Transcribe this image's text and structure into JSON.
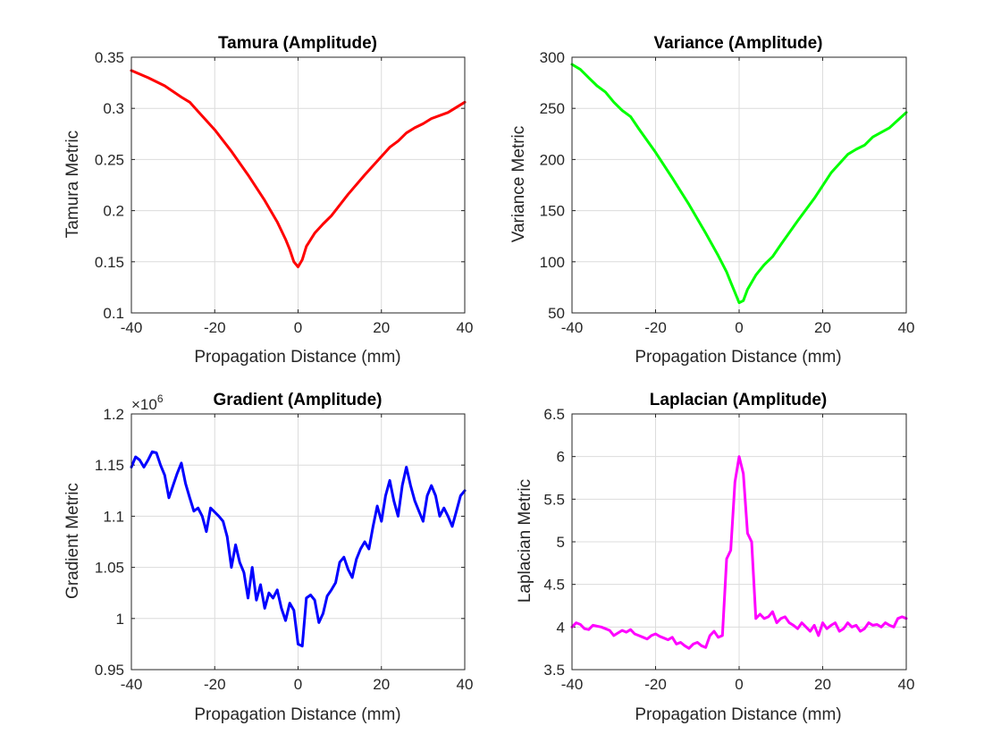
{
  "chart_data": [
    {
      "type": "line",
      "title": "Tamura (Amplitude)",
      "xlabel": "Propagation Distance (mm)",
      "ylabel": "Tamura Metric",
      "xlim": [
        -40,
        40
      ],
      "ylim": [
        0.1,
        0.35
      ],
      "xticks": [
        "-40",
        "-20",
        "0",
        "20",
        "40"
      ],
      "yticks": [
        "0.1",
        "0.15",
        "0.2",
        "0.25",
        "0.3",
        "0.35"
      ],
      "exponent_label": "",
      "grid": true,
      "color": "#ff0000",
      "x": [
        -40,
        -36,
        -32,
        -28,
        -26,
        -24,
        -20,
        -16,
        -12,
        -8,
        -5,
        -3,
        -2,
        -1,
        0,
        1,
        2,
        4,
        6,
        8,
        12,
        16,
        20,
        22,
        24,
        26,
        28,
        30,
        32,
        36,
        40
      ],
      "y": [
        0.337,
        0.33,
        0.322,
        0.311,
        0.306,
        0.297,
        0.279,
        0.258,
        0.235,
        0.21,
        0.189,
        0.172,
        0.162,
        0.15,
        0.145,
        0.152,
        0.165,
        0.178,
        0.187,
        0.195,
        0.216,
        0.235,
        0.253,
        0.262,
        0.268,
        0.276,
        0.281,
        0.285,
        0.29,
        0.296,
        0.306
      ]
    },
    {
      "type": "line",
      "title": "Variance (Amplitude)",
      "xlabel": "Propagation Distance (mm)",
      "ylabel": "Variance Metric",
      "xlim": [
        -40,
        40
      ],
      "ylim": [
        50,
        300
      ],
      "xticks": [
        "-40",
        "-20",
        "0",
        "20",
        "40"
      ],
      "yticks": [
        "50",
        "100",
        "150",
        "200",
        "250",
        "300"
      ],
      "exponent_label": "",
      "grid": true,
      "color": "#00ff00",
      "x": [
        -40,
        -38,
        -36,
        -34,
        -32,
        -30,
        -28,
        -26,
        -24,
        -20,
        -16,
        -12,
        -8,
        -5,
        -3,
        -2,
        -1,
        0,
        1,
        2,
        4,
        6,
        8,
        10,
        14,
        18,
        22,
        26,
        28,
        30,
        32,
        36,
        40
      ],
      "y": [
        293,
        288,
        280,
        272,
        266,
        256,
        248,
        242,
        230,
        207,
        182,
        156,
        128,
        106,
        90,
        80,
        70,
        60,
        62,
        73,
        87,
        97,
        105,
        117,
        140,
        162,
        187,
        205,
        210,
        214,
        222,
        231,
        246
      ]
    },
    {
      "type": "line",
      "title": "Gradient (Amplitude)",
      "xlabel": "Propagation Distance (mm)",
      "ylabel": "Gradient Metric",
      "xlim": [
        -40,
        40
      ],
      "ylim": [
        0.95,
        1.2
      ],
      "xticks": [
        "-40",
        "-20",
        "0",
        "20",
        "40"
      ],
      "yticks": [
        "0.95",
        "1",
        "1.05",
        "1.1",
        "1.15",
        "1.2"
      ],
      "exponent_label": "×10",
      "exponent_power": "6",
      "grid": true,
      "color": "#0000ff",
      "x": [
        -40,
        -39,
        -38,
        -37,
        -36,
        -35,
        -34,
        -33,
        -32,
        -31,
        -30,
        -29,
        -28,
        -27,
        -26,
        -25,
        -24,
        -23,
        -22,
        -21,
        -20,
        -19,
        -18,
        -17,
        -16,
        -15,
        -14,
        -13,
        -12,
        -11,
        -10,
        -9,
        -8,
        -7,
        -6,
        -5,
        -4,
        -3,
        -2,
        -1,
        0,
        1,
        2,
        3,
        4,
        5,
        6,
        7,
        8,
        9,
        10,
        11,
        12,
        13,
        14,
        15,
        16,
        17,
        18,
        19,
        20,
        21,
        22,
        23,
        24,
        25,
        26,
        27,
        28,
        29,
        30,
        31,
        32,
        33,
        34,
        35,
        36,
        37,
        38,
        39,
        40
      ],
      "y": [
        1.148,
        1.158,
        1.155,
        1.148,
        1.155,
        1.163,
        1.162,
        1.15,
        1.14,
        1.118,
        1.13,
        1.142,
        1.152,
        1.132,
        1.118,
        1.105,
        1.108,
        1.1,
        1.085,
        1.108,
        1.104,
        1.1,
        1.095,
        1.08,
        1.05,
        1.072,
        1.055,
        1.045,
        1.02,
        1.05,
        1.018,
        1.033,
        1.01,
        1.025,
        1.02,
        1.028,
        1.01,
        0.998,
        1.015,
        1.008,
        0.975,
        0.973,
        1.02,
        1.023,
        1.018,
        0.996,
        1.005,
        1.022,
        1.028,
        1.035,
        1.055,
        1.06,
        1.048,
        1.04,
        1.058,
        1.068,
        1.075,
        1.068,
        1.09,
        1.11,
        1.095,
        1.12,
        1.135,
        1.115,
        1.1,
        1.13,
        1.148,
        1.13,
        1.115,
        1.105,
        1.095,
        1.12,
        1.13,
        1.12,
        1.1,
        1.108,
        1.1,
        1.09,
        1.105,
        1.12,
        1.125
      ]
    },
    {
      "type": "line",
      "title": "Laplacian (Amplitude)",
      "xlabel": "Propagation Distance (mm)",
      "ylabel": "Laplacian Metric",
      "xlim": [
        -40,
        40
      ],
      "ylim": [
        3.5,
        6.5
      ],
      "xticks": [
        "-40",
        "-20",
        "0",
        "20",
        "40"
      ],
      "yticks": [
        "3.5",
        "4",
        "4.5",
        "5",
        "5.5",
        "6",
        "6.5"
      ],
      "exponent_label": "",
      "grid": true,
      "color": "#ff00ff",
      "x": [
        -40,
        -39,
        -38,
        -37,
        -36,
        -35,
        -34,
        -33,
        -32,
        -31,
        -30,
        -29,
        -28,
        -27,
        -26,
        -25,
        -24,
        -23,
        -22,
        -21,
        -20,
        -19,
        -18,
        -17,
        -16,
        -15,
        -14,
        -13,
        -12,
        -11,
        -10,
        -9,
        -8,
        -7,
        -6,
        -5,
        -4,
        -3,
        -2,
        -1,
        0,
        1,
        2,
        3,
        4,
        5,
        6,
        7,
        8,
        9,
        10,
        11,
        12,
        13,
        14,
        15,
        16,
        17,
        18,
        19,
        20,
        21,
        22,
        23,
        24,
        25,
        26,
        27,
        28,
        29,
        30,
        31,
        32,
        33,
        34,
        35,
        36,
        37,
        38,
        39,
        40
      ],
      "y": [
        4.0,
        4.05,
        4.03,
        3.98,
        3.97,
        4.02,
        4.01,
        4.0,
        3.98,
        3.96,
        3.9,
        3.93,
        3.96,
        3.94,
        3.97,
        3.92,
        3.9,
        3.88,
        3.86,
        3.9,
        3.92,
        3.89,
        3.87,
        3.85,
        3.88,
        3.8,
        3.82,
        3.78,
        3.75,
        3.8,
        3.82,
        3.78,
        3.76,
        3.9,
        3.95,
        3.88,
        3.9,
        4.8,
        4.9,
        5.7,
        6.0,
        5.8,
        5.1,
        5.0,
        4.1,
        4.15,
        4.1,
        4.12,
        4.18,
        4.05,
        4.1,
        4.12,
        4.05,
        4.02,
        3.98,
        4.05,
        4.0,
        3.95,
        4.02,
        3.9,
        4.05,
        3.98,
        4.02,
        4.05,
        3.95,
        3.98,
        4.05,
        4.0,
        4.02,
        3.95,
        3.98,
        4.05,
        4.02,
        4.03,
        4.0,
        4.05,
        4.02,
        4.0,
        4.1,
        4.12,
        4.1
      ]
    }
  ]
}
